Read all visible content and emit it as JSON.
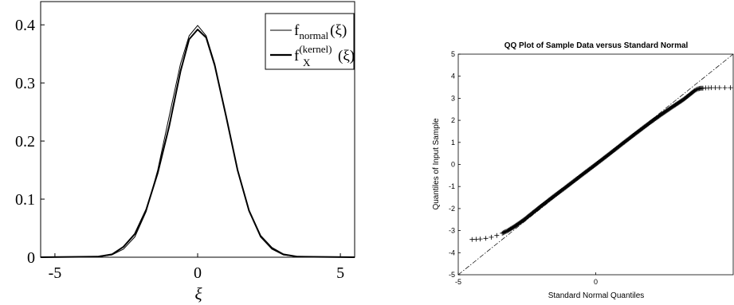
{
  "chart_data": [
    {
      "type": "line",
      "title": "",
      "xlabel": "ξ",
      "ylabel": "",
      "xlim": [
        -5.5,
        5.5
      ],
      "ylim": [
        0,
        0.44
      ],
      "xticks": [
        -5,
        0,
        5
      ],
      "xtick_labels": [
        "-5",
        "0",
        "5"
      ],
      "yticks": [
        0,
        0.1,
        0.2,
        0.3,
        0.4
      ],
      "ytick_labels": [
        "0",
        "0.1",
        "0.2",
        "0.3",
        "0.4"
      ],
      "grid": false,
      "legend_position": "top-right",
      "series": [
        {
          "name": "f_normal(ξ)",
          "legend": {
            "base": "f",
            "sub": "normal",
            "sup": "",
            "arg": "(ξ)"
          },
          "style": "thin",
          "x": [
            -5.5,
            -3.5,
            -3.0,
            -2.6,
            -2.2,
            -1.8,
            -1.4,
            -1.0,
            -0.6,
            -0.3,
            0.0,
            0.3,
            0.6,
            1.0,
            1.4,
            1.8,
            2.2,
            2.6,
            3.0,
            3.5,
            5.5
          ],
          "y": [
            0.0,
            0.001,
            0.004,
            0.014,
            0.035,
            0.079,
            0.15,
            0.242,
            0.333,
            0.381,
            0.399,
            0.381,
            0.333,
            0.242,
            0.15,
            0.079,
            0.035,
            0.014,
            0.004,
            0.001,
            0.0
          ]
        },
        {
          "name": "f_X^(kernel)(ξ)",
          "legend": {
            "base": "f",
            "sub": "X",
            "sup": "(kernel)",
            "arg": "(ξ)"
          },
          "style": "thick",
          "x": [
            -5.5,
            -3.5,
            -3.0,
            -2.6,
            -2.2,
            -1.8,
            -1.4,
            -1.0,
            -0.6,
            -0.3,
            0.0,
            0.3,
            0.6,
            1.0,
            1.4,
            1.8,
            2.2,
            2.6,
            3.0,
            3.5,
            5.5
          ],
          "y": [
            0.0,
            0.001,
            0.005,
            0.018,
            0.04,
            0.082,
            0.145,
            0.225,
            0.32,
            0.375,
            0.392,
            0.378,
            0.33,
            0.242,
            0.15,
            0.08,
            0.037,
            0.016,
            0.005,
            0.001,
            0.0
          ]
        }
      ]
    },
    {
      "type": "scatter",
      "title": "QQ Plot of Sample Data versus Standard Normal",
      "xlabel": "Standard Normal Quantiles",
      "ylabel": "Quantiles of Input Sample",
      "xlim": [
        -5,
        5
      ],
      "ylim": [
        -5,
        5
      ],
      "xticks": [
        -5,
        0
      ],
      "xtick_labels": [
        "-5",
        "0"
      ],
      "yticks": [
        -5,
        -4,
        -3,
        -2,
        -1,
        0,
        1,
        2,
        3,
        4,
        5
      ],
      "ytick_labels": [
        "-5",
        "-4",
        "-3",
        "-2",
        "-1",
        "0",
        "1",
        "2",
        "3",
        "4",
        "5"
      ],
      "grid": false,
      "marker": "+",
      "reference_line": {
        "x": [
          -5,
          5
        ],
        "y": [
          -5,
          5
        ],
        "style": "dash-dot"
      },
      "series": [
        {
          "x": [
            -4.5,
            -4.2,
            -4.0,
            -3.8,
            -3.6,
            -3.4,
            -3.2,
            -3.0,
            -2.8,
            -2.6,
            -2.4,
            -2.2,
            -2.0,
            -1.5,
            -1.0,
            -0.5,
            0.0,
            0.5,
            1.0,
            1.5,
            2.0,
            2.4,
            2.8,
            3.2,
            3.6,
            3.7,
            3.8,
            3.9,
            4.0,
            4.1,
            4.2,
            4.35,
            4.5,
            4.7,
            4.9
          ],
          "y": [
            -3.4,
            -3.38,
            -3.35,
            -3.3,
            -3.22,
            -3.12,
            -3.0,
            -2.85,
            -2.68,
            -2.5,
            -2.3,
            -2.1,
            -1.9,
            -1.42,
            -0.95,
            -0.47,
            0.0,
            0.48,
            0.97,
            1.45,
            1.92,
            2.28,
            2.62,
            2.95,
            3.35,
            3.42,
            3.45,
            3.46,
            3.47,
            3.47,
            3.48,
            3.48,
            3.48,
            3.48,
            3.48
          ]
        }
      ]
    }
  ]
}
